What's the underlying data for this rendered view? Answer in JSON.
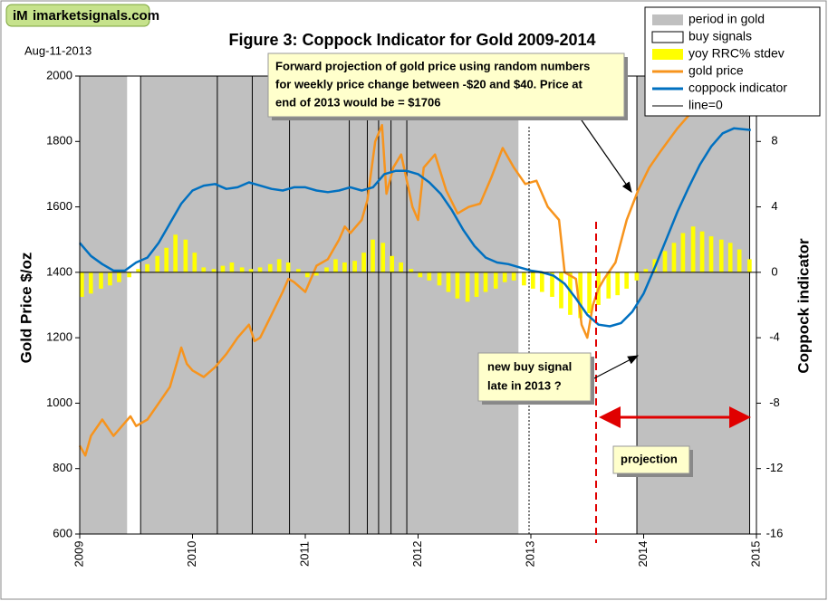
{
  "chart_data": {
    "type": "combo",
    "watermark": "imarketsignals.com",
    "logo": "iM",
    "date": "Aug-11-2013",
    "title": "Figure 3:  Coppock Indicator for Gold  2009-2014",
    "y_label": "Gold Price  $/oz",
    "y2_label": "Coppock indicator",
    "xlim": [
      2009,
      2015
    ],
    "xticks": [
      2009,
      2010,
      2011,
      2012,
      2013,
      2014,
      2015
    ],
    "ylim": [
      600,
      2000
    ],
    "yticks": [
      600,
      800,
      1000,
      1200,
      1400,
      1600,
      1800,
      2000
    ],
    "y2lim": [
      -16,
      12
    ],
    "y2ticks": [
      -16,
      -12,
      -8,
      -4,
      0,
      4,
      8
    ],
    "annotations": [
      [
        "Forward projection of gold price using random numbers",
        "for weekly price change between -$20 and $40.  Price at",
        "end of 2013 would be = $1706"
      ],
      [
        "new buy signal",
        "late in 2013 ?"
      ],
      [
        "projection"
      ]
    ],
    "series": [
      {
        "name": "period in gold",
        "type": "band",
        "color": "#c0c0c0",
        "periods": [
          [
            2009.0,
            2009.42
          ],
          [
            2009.54,
            2012.89
          ],
          [
            2013.94,
            2014.94
          ]
        ]
      },
      {
        "name": "buy signals",
        "type": "vline",
        "color": "#000000",
        "x": [
          2009.54,
          2010.22,
          2010.53,
          2010.86,
          2011.39,
          2011.55,
          2011.65,
          2011.76,
          2011.9,
          2013.94,
          2014.94
        ]
      },
      {
        "name": "yoy RRC% stdev",
        "type": "bar",
        "axis": "y2",
        "color": "#ffff00",
        "x": [
          2009.0,
          2009.08,
          2009.17,
          2009.25,
          2009.33,
          2009.42,
          2009.5,
          2009.58,
          2009.67,
          2009.75,
          2009.83,
          2009.92,
          2010.0,
          2010.08,
          2010.17,
          2010.25,
          2010.33,
          2010.42,
          2010.5,
          2010.58,
          2010.67,
          2010.75,
          2010.83,
          2010.92,
          2011.0,
          2011.08,
          2011.17,
          2011.25,
          2011.33,
          2011.42,
          2011.5,
          2011.58,
          2011.67,
          2011.75,
          2011.83,
          2011.92,
          2012.0,
          2012.08,
          2012.17,
          2012.25,
          2012.33,
          2012.42,
          2012.5,
          2012.58,
          2012.67,
          2012.75,
          2012.83,
          2012.92,
          2013.0,
          2013.08,
          2013.17,
          2013.25,
          2013.33,
          2013.42,
          2013.5,
          2013.58,
          2013.67,
          2013.75,
          2013.83,
          2013.92,
          2014.0,
          2014.08,
          2014.17,
          2014.25,
          2014.33,
          2014.42,
          2014.5,
          2014.58,
          2014.67,
          2014.75,
          2014.83,
          2014.92
        ],
        "values": [
          -1.5,
          -1.3,
          -1.0,
          -0.8,
          -0.6,
          -0.3,
          0.2,
          0.5,
          1.0,
          1.5,
          2.3,
          2.0,
          1.2,
          0.3,
          0.2,
          0.4,
          0.6,
          0.3,
          0.2,
          0.3,
          0.5,
          0.8,
          0.6,
          0.2,
          -0.3,
          -0.2,
          0.3,
          0.8,
          0.6,
          0.7,
          1.2,
          2.0,
          1.8,
          1.0,
          0.6,
          0.2,
          -0.3,
          -0.5,
          -0.8,
          -1.2,
          -1.6,
          -1.8,
          -1.5,
          -1.2,
          -1.0,
          -0.6,
          -0.5,
          -0.8,
          -1.0,
          -1.2,
          -1.5,
          -2.2,
          -2.6,
          -2.8,
          -2.5,
          -2.0,
          -1.6,
          -1.4,
          -1.0,
          -0.5,
          0.2,
          0.8,
          1.3,
          1.8,
          2.4,
          2.8,
          2.5,
          2.2,
          2.0,
          1.8,
          1.4,
          0.8
        ]
      },
      {
        "name": "gold price",
        "type": "line",
        "color": "#f7941d",
        "x": [
          2009.0,
          2009.05,
          2009.1,
          2009.2,
          2009.3,
          2009.4,
          2009.45,
          2009.5,
          2009.6,
          2009.7,
          2009.8,
          2009.9,
          2009.95,
          2010.0,
          2010.1,
          2010.2,
          2010.3,
          2010.4,
          2010.5,
          2010.55,
          2010.6,
          2010.7,
          2010.8,
          2010.85,
          2010.9,
          2011.0,
          2011.05,
          2011.1,
          2011.2,
          2011.3,
          2011.35,
          2011.4,
          2011.5,
          2011.55,
          2011.62,
          2011.68,
          2011.72,
          2011.78,
          2011.85,
          2011.9,
          2011.95,
          2012.0,
          2012.05,
          2012.15,
          2012.25,
          2012.35,
          2012.45,
          2012.55,
          2012.65,
          2012.75,
          2012.85,
          2012.95,
          2013.05,
          2013.15,
          2013.25,
          2013.3,
          2013.4,
          2013.45,
          2013.5,
          2013.55,
          2013.6,
          2013.65,
          2013.75,
          2013.85,
          2013.95,
          2014.05,
          2014.15,
          2014.3,
          2014.4
        ],
        "values": [
          870,
          840,
          900,
          950,
          900,
          940,
          960,
          930,
          950,
          1000,
          1050,
          1170,
          1120,
          1100,
          1080,
          1110,
          1150,
          1200,
          1240,
          1190,
          1200,
          1270,
          1340,
          1380,
          1370,
          1340,
          1380,
          1420,
          1440,
          1500,
          1540,
          1520,
          1560,
          1620,
          1800,
          1850,
          1640,
          1720,
          1760,
          1680,
          1600,
          1560,
          1720,
          1760,
          1650,
          1580,
          1600,
          1610,
          1690,
          1780,
          1720,
          1670,
          1680,
          1600,
          1560,
          1400,
          1380,
          1240,
          1200,
          1300,
          1350,
          1380,
          1430,
          1560,
          1650,
          1720,
          1770,
          1840,
          1880
        ]
      },
      {
        "name": "coppock indicator",
        "type": "line",
        "axis": "y2",
        "color": "#0070c0",
        "x": [
          2009.0,
          2009.1,
          2009.2,
          2009.3,
          2009.4,
          2009.5,
          2009.6,
          2009.7,
          2009.8,
          2009.9,
          2010.0,
          2010.1,
          2010.2,
          2010.3,
          2010.4,
          2010.5,
          2010.6,
          2010.7,
          2010.8,
          2010.9,
          2011.0,
          2011.1,
          2011.2,
          2011.3,
          2011.4,
          2011.5,
          2011.6,
          2011.7,
          2011.8,
          2011.9,
          2012.0,
          2012.1,
          2012.2,
          2012.3,
          2012.4,
          2012.5,
          2012.6,
          2012.7,
          2012.8,
          2012.9,
          2013.0,
          2013.1,
          2013.2,
          2013.3,
          2013.4,
          2013.5,
          2013.6,
          2013.7,
          2013.8,
          2013.9,
          2014.0,
          2014.1,
          2014.2,
          2014.3,
          2014.4,
          2014.5,
          2014.6,
          2014.7,
          2014.8,
          2014.95
        ],
        "values": [
          1.8,
          1.0,
          0.5,
          0.1,
          0.1,
          0.6,
          0.9,
          1.8,
          3.0,
          4.2,
          5.0,
          5.3,
          5.4,
          5.1,
          5.2,
          5.5,
          5.3,
          5.1,
          5.0,
          5.2,
          5.2,
          5.0,
          4.9,
          5.0,
          5.2,
          5.0,
          5.2,
          6.0,
          6.2,
          6.2,
          6.0,
          5.5,
          4.8,
          3.8,
          2.6,
          1.6,
          0.9,
          0.6,
          0.5,
          0.3,
          0.1,
          0.0,
          -0.2,
          -0.7,
          -1.6,
          -2.6,
          -3.2,
          -3.3,
          -3.1,
          -2.4,
          -1.3,
          0.3,
          2.0,
          3.7,
          5.2,
          6.6,
          7.7,
          8.5,
          8.8,
          8.7
        ]
      },
      {
        "name": "line=0",
        "type": "hline",
        "axis": "y2",
        "color": "#000000",
        "value": 0
      }
    ]
  }
}
